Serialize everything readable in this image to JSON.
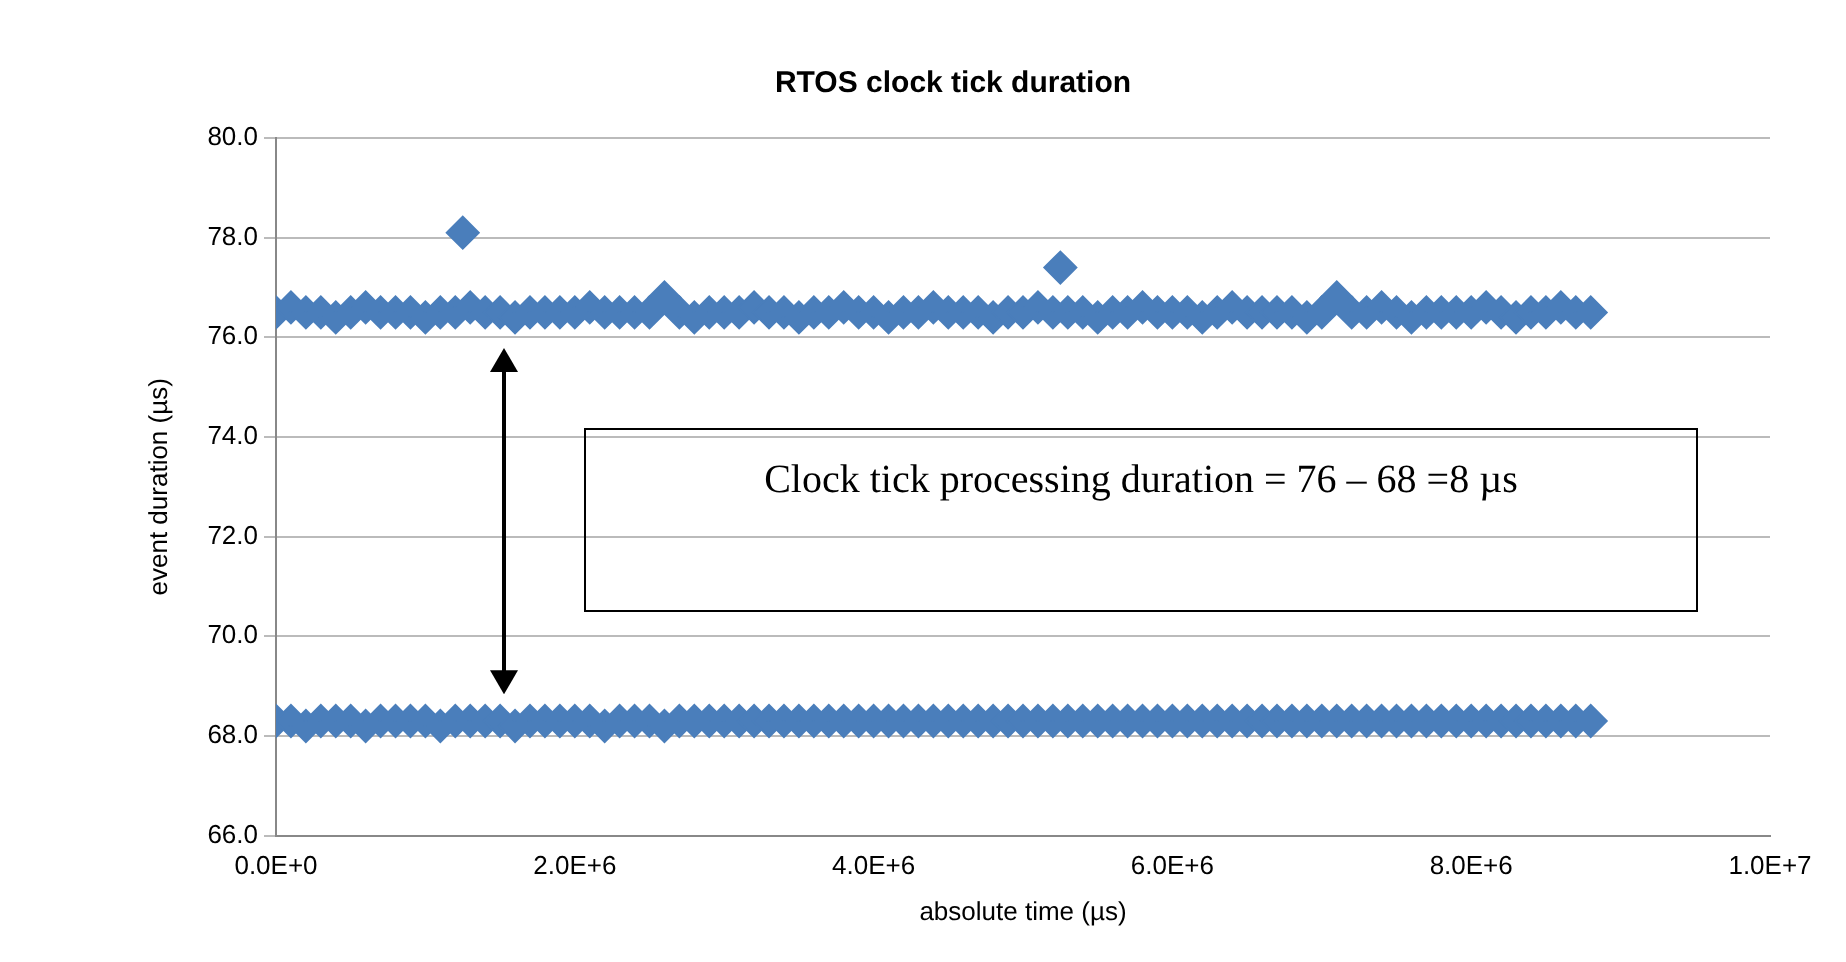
{
  "chart_data": {
    "type": "scatter",
    "title": "RTOS clock tick duration",
    "xlabel": "absolute time (µs)",
    "ylabel": "event duration (µs)",
    "annotations": [
      "Clock tick processing duration = 76 – 68 =8 µs"
    ],
    "marker": "diamond",
    "grid": "y",
    "legend": false,
    "xlim": [
      0,
      10000000
    ],
    "ylim": [
      66,
      80
    ],
    "xticks": [
      {
        "value": 0,
        "label": "0.0E+0"
      },
      {
        "value": 2000000,
        "label": "2.0E+6"
      },
      {
        "value": 4000000,
        "label": "4.0E+6"
      },
      {
        "value": 6000000,
        "label": "6.0E+6"
      },
      {
        "value": 8000000,
        "label": "8.0E+6"
      },
      {
        "value": 10000000,
        "label": "1.0E+7"
      }
    ],
    "yticks": [
      {
        "value": 66,
        "label": "66.0"
      },
      {
        "value": 68,
        "label": "68.0"
      },
      {
        "value": 70,
        "label": "70.0"
      },
      {
        "value": 72,
        "label": "72.0"
      },
      {
        "value": 74,
        "label": "74.0"
      },
      {
        "value": 76,
        "label": "76.0"
      },
      {
        "value": 78,
        "label": "78.0"
      },
      {
        "value": 80,
        "label": "80.0"
      }
    ],
    "x": [
      0,
      100000,
      200000,
      300000,
      400000,
      500000,
      600000,
      700000,
      800000,
      900000,
      1000000,
      1100000,
      1200000,
      1300000,
      1400000,
      1500000,
      1600000,
      1700000,
      1800000,
      1900000,
      2000000,
      2100000,
      2200000,
      2300000,
      2400000,
      2500000,
      2600000,
      2700000,
      2800000,
      2900000,
      3000000,
      3100000,
      3200000,
      3300000,
      3400000,
      3500000,
      3600000,
      3700000,
      3800000,
      3900000,
      4000000,
      4100000,
      4200000,
      4300000,
      4400000,
      4500000,
      4600000,
      4700000,
      4800000,
      4900000,
      5000000,
      5100000,
      5200000,
      5300000,
      5400000,
      5500000,
      5600000,
      5700000,
      5800000,
      5900000,
      6000000,
      6100000,
      6200000,
      6300000,
      6400000,
      6500000,
      6600000,
      6700000,
      6800000,
      6900000,
      7000000,
      7100000,
      7200000,
      7300000,
      7400000,
      7500000,
      7600000,
      7700000,
      7800000,
      7900000,
      8000000,
      8100000,
      8200000,
      8300000,
      8400000,
      8500000,
      8600000,
      8700000,
      8800000
    ],
    "series": [
      {
        "color": "#4a7ebb",
        "values": [
          76.5,
          76.6,
          76.5,
          76.5,
          76.4,
          76.5,
          76.6,
          76.5,
          76.5,
          76.5,
          76.4,
          76.5,
          76.5,
          76.6,
          76.5,
          76.5,
          76.4,
          76.5,
          76.5,
          76.5,
          76.5,
          76.6,
          76.5,
          76.5,
          76.5,
          76.5,
          76.8,
          76.5,
          76.4,
          76.5,
          76.5,
          76.5,
          76.6,
          76.5,
          76.5,
          76.4,
          76.5,
          76.5,
          76.6,
          76.5,
          76.5,
          76.4,
          76.5,
          76.5,
          76.6,
          76.5,
          76.5,
          76.5,
          76.4,
          76.5,
          76.5,
          76.6,
          76.5,
          76.5,
          76.5,
          76.4,
          76.5,
          76.5,
          76.6,
          76.5,
          76.5,
          76.5,
          76.4,
          76.5,
          76.6,
          76.5,
          76.5,
          76.5,
          76.5,
          76.4,
          76.5,
          76.8,
          76.5,
          76.5,
          76.6,
          76.5,
          76.4,
          76.5,
          76.5,
          76.5,
          76.5,
          76.6,
          76.5,
          76.4,
          76.5,
          76.5,
          76.6,
          76.5,
          76.5
        ]
      },
      {
        "color": "#4a7ebb",
        "values": [
          68.3,
          68.3,
          68.2,
          68.3,
          68.3,
          68.3,
          68.2,
          68.3,
          68.3,
          68.3,
          68.3,
          68.2,
          68.3,
          68.3,
          68.3,
          68.3,
          68.2,
          68.3,
          68.3,
          68.3,
          68.3,
          68.3,
          68.2,
          68.3,
          68.3,
          68.3,
          68.2,
          68.3,
          68.3,
          68.3,
          68.3,
          68.3,
          68.3,
          68.3,
          68.3,
          68.3,
          68.3,
          68.3,
          68.3,
          68.3,
          68.3,
          68.3,
          68.3,
          68.3,
          68.3,
          68.3,
          68.3,
          68.3,
          68.3,
          68.3,
          68.3,
          68.3,
          68.3,
          68.3,
          68.3,
          68.3,
          68.3,
          68.3,
          68.3,
          68.3,
          68.3,
          68.3,
          68.3,
          68.3,
          68.3,
          68.3,
          68.3,
          68.3,
          68.3,
          68.3,
          68.3,
          68.3,
          68.3,
          68.3,
          68.3,
          68.3,
          68.3,
          68.3,
          68.3,
          68.3,
          68.3,
          68.3,
          68.3,
          68.3,
          68.3,
          68.3,
          68.3,
          68.3,
          68.3
        ]
      },
      {
        "color": "#4a7ebb",
        "x": [
          1250000,
          5250000
        ],
        "values": [
          78.1,
          77.4
        ]
      }
    ]
  }
}
